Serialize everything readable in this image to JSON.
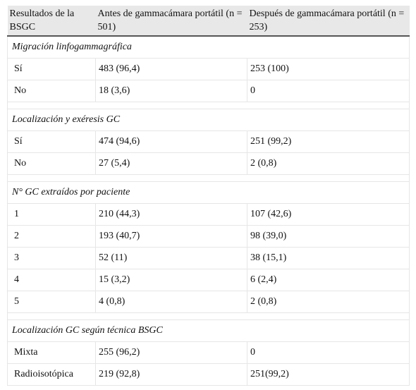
{
  "table": {
    "header": [
      "Resultados de la BSGC",
      "Antes de gammacámara portátil (n = 501)",
      "Después de gammacámara portátil (n = 253)"
    ],
    "sections": [
      {
        "title": "Migración linfogammagráfica",
        "rows": [
          [
            "Sí",
            "483 (96,4)",
            "253 (100)"
          ],
          [
            "No",
            "18 (3,6)",
            "0"
          ]
        ]
      },
      {
        "title": "Localización y exéresis GC",
        "rows": [
          [
            "Sí",
            "474 (94,6)",
            "251 (99,2)"
          ],
          [
            "No",
            "27 (5,4)",
            "2 (0,8)"
          ]
        ]
      },
      {
        "title": "N° GC extraídos por paciente",
        "rows": [
          [
            "1",
            "210 (44,3)",
            "107 (42,6)"
          ],
          [
            "2",
            "193 (40,7)",
            "98 (39,0)"
          ],
          [
            "3",
            "52 (11)",
            "38 (15,1)"
          ],
          [
            "4",
            "15 (3,2)",
            "6 (2,4)"
          ],
          [
            "5",
            "4 (0,8)",
            "2 (0,8)"
          ]
        ]
      },
      {
        "title": "Localización GC según técnica BSGC",
        "rows": [
          [
            "Mixta",
            "255 (96,2)",
            "0"
          ],
          [
            "Radioisotópica",
            "219 (92,8)",
            "251(99,2)"
          ]
        ]
      }
    ]
  }
}
